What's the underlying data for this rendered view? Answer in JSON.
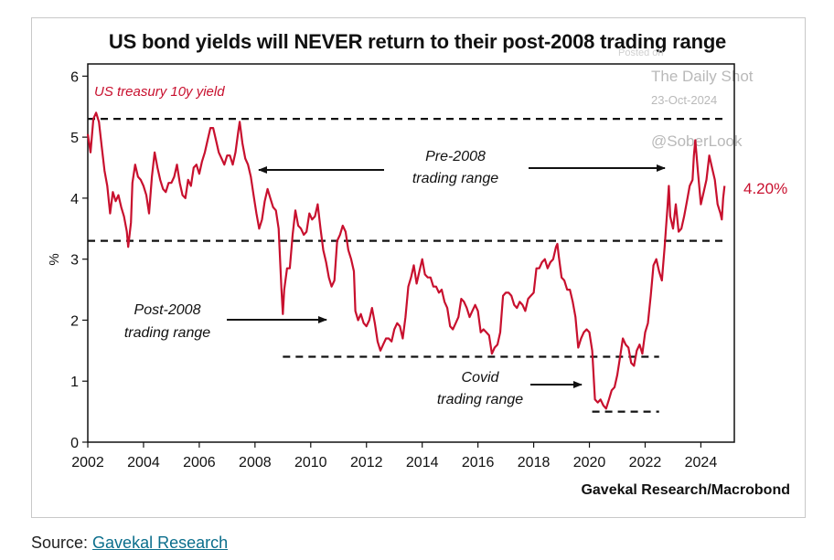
{
  "title": "US bond yields will NEVER return to their post-2008 trading range",
  "credit": "Gavekal Research/Macrobond",
  "source": {
    "prefix": "Source: ",
    "link": "Gavekal Research"
  },
  "watermark": {
    "posted": "Posted on",
    "name": "The Daily Shot",
    "date": "23-Oct-2024",
    "handle": "@SoberLook"
  },
  "colors": {
    "series": "#c8102e",
    "text": "#111111",
    "link": "#0b6e8c"
  },
  "chart_data": {
    "type": "line",
    "ylabel": "%",
    "xlim": [
      2002,
      2025.2
    ],
    "ylim": [
      0,
      6.2
    ],
    "yticks": [
      0,
      1,
      2,
      3,
      4,
      5,
      6
    ],
    "xticks": [
      2002,
      2004,
      2006,
      2008,
      2010,
      2012,
      2014,
      2016,
      2018,
      2020,
      2022,
      2024
    ],
    "grid": false,
    "series": [
      {
        "name": "US treasury 10y yield",
        "end_label": "4.20%",
        "points": [
          [
            2002.0,
            5.05
          ],
          [
            2002.1,
            4.75
          ],
          [
            2002.2,
            5.3
          ],
          [
            2002.3,
            5.4
          ],
          [
            2002.4,
            5.25
          ],
          [
            2002.5,
            4.85
          ],
          [
            2002.6,
            4.45
          ],
          [
            2002.7,
            4.2
          ],
          [
            2002.8,
            3.75
          ],
          [
            2002.9,
            4.1
          ],
          [
            2003.0,
            3.95
          ],
          [
            2003.1,
            4.05
          ],
          [
            2003.2,
            3.85
          ],
          [
            2003.3,
            3.7
          ],
          [
            2003.4,
            3.45
          ],
          [
            2003.45,
            3.2
          ],
          [
            2003.55,
            3.6
          ],
          [
            2003.6,
            4.25
          ],
          [
            2003.7,
            4.55
          ],
          [
            2003.8,
            4.35
          ],
          [
            2003.9,
            4.3
          ],
          [
            2004.0,
            4.2
          ],
          [
            2004.1,
            4.05
          ],
          [
            2004.2,
            3.75
          ],
          [
            2004.3,
            4.35
          ],
          [
            2004.4,
            4.75
          ],
          [
            2004.5,
            4.5
          ],
          [
            2004.6,
            4.3
          ],
          [
            2004.7,
            4.15
          ],
          [
            2004.8,
            4.1
          ],
          [
            2004.9,
            4.25
          ],
          [
            2005.0,
            4.25
          ],
          [
            2005.1,
            4.35
          ],
          [
            2005.2,
            4.55
          ],
          [
            2005.3,
            4.25
          ],
          [
            2005.4,
            4.05
          ],
          [
            2005.5,
            4.0
          ],
          [
            2005.6,
            4.3
          ],
          [
            2005.7,
            4.2
          ],
          [
            2005.8,
            4.5
          ],
          [
            2005.9,
            4.55
          ],
          [
            2006.0,
            4.4
          ],
          [
            2006.1,
            4.6
          ],
          [
            2006.2,
            4.75
          ],
          [
            2006.3,
            4.95
          ],
          [
            2006.4,
            5.15
          ],
          [
            2006.5,
            5.15
          ],
          [
            2006.6,
            4.95
          ],
          [
            2006.7,
            4.75
          ],
          [
            2006.8,
            4.65
          ],
          [
            2006.9,
            4.55
          ],
          [
            2007.0,
            4.7
          ],
          [
            2007.1,
            4.7
          ],
          [
            2007.2,
            4.55
          ],
          [
            2007.3,
            4.75
          ],
          [
            2007.4,
            5.1
          ],
          [
            2007.45,
            5.25
          ],
          [
            2007.55,
            4.9
          ],
          [
            2007.65,
            4.65
          ],
          [
            2007.75,
            4.55
          ],
          [
            2007.85,
            4.35
          ],
          [
            2007.95,
            4.05
          ],
          [
            2008.05,
            3.75
          ],
          [
            2008.15,
            3.5
          ],
          [
            2008.25,
            3.65
          ],
          [
            2008.35,
            3.95
          ],
          [
            2008.45,
            4.15
          ],
          [
            2008.55,
            4.0
          ],
          [
            2008.65,
            3.85
          ],
          [
            2008.75,
            3.8
          ],
          [
            2008.85,
            3.5
          ],
          [
            2008.95,
            2.5
          ],
          [
            2009.0,
            2.1
          ],
          [
            2009.05,
            2.5
          ],
          [
            2009.15,
            2.85
          ],
          [
            2009.25,
            2.85
          ],
          [
            2009.35,
            3.4
          ],
          [
            2009.45,
            3.8
          ],
          [
            2009.55,
            3.55
          ],
          [
            2009.65,
            3.5
          ],
          [
            2009.75,
            3.4
          ],
          [
            2009.85,
            3.45
          ],
          [
            2009.95,
            3.75
          ],
          [
            2010.05,
            3.65
          ],
          [
            2010.15,
            3.7
          ],
          [
            2010.25,
            3.9
          ],
          [
            2010.35,
            3.5
          ],
          [
            2010.45,
            3.15
          ],
          [
            2010.55,
            2.95
          ],
          [
            2010.65,
            2.7
          ],
          [
            2010.75,
            2.55
          ],
          [
            2010.85,
            2.65
          ],
          [
            2010.95,
            3.3
          ],
          [
            2011.05,
            3.4
          ],
          [
            2011.15,
            3.55
          ],
          [
            2011.25,
            3.45
          ],
          [
            2011.35,
            3.15
          ],
          [
            2011.45,
            3.0
          ],
          [
            2011.55,
            2.8
          ],
          [
            2011.6,
            2.15
          ],
          [
            2011.7,
            2.0
          ],
          [
            2011.8,
            2.1
          ],
          [
            2011.9,
            1.95
          ],
          [
            2012.0,
            1.9
          ],
          [
            2012.1,
            2.0
          ],
          [
            2012.2,
            2.2
          ],
          [
            2012.3,
            1.95
          ],
          [
            2012.4,
            1.65
          ],
          [
            2012.5,
            1.5
          ],
          [
            2012.6,
            1.6
          ],
          [
            2012.7,
            1.7
          ],
          [
            2012.8,
            1.7
          ],
          [
            2012.9,
            1.65
          ],
          [
            2013.0,
            1.85
          ],
          [
            2013.1,
            1.95
          ],
          [
            2013.2,
            1.9
          ],
          [
            2013.3,
            1.7
          ],
          [
            2013.4,
            2.05
          ],
          [
            2013.5,
            2.55
          ],
          [
            2013.6,
            2.7
          ],
          [
            2013.7,
            2.9
          ],
          [
            2013.8,
            2.6
          ],
          [
            2013.9,
            2.8
          ],
          [
            2014.0,
            3.0
          ],
          [
            2014.1,
            2.75
          ],
          [
            2014.2,
            2.7
          ],
          [
            2014.3,
            2.7
          ],
          [
            2014.4,
            2.55
          ],
          [
            2014.5,
            2.55
          ],
          [
            2014.6,
            2.45
          ],
          [
            2014.7,
            2.5
          ],
          [
            2014.8,
            2.3
          ],
          [
            2014.9,
            2.2
          ],
          [
            2015.0,
            1.9
          ],
          [
            2015.1,
            1.85
          ],
          [
            2015.2,
            1.95
          ],
          [
            2015.3,
            2.05
          ],
          [
            2015.4,
            2.35
          ],
          [
            2015.5,
            2.3
          ],
          [
            2015.6,
            2.2
          ],
          [
            2015.7,
            2.05
          ],
          [
            2015.8,
            2.15
          ],
          [
            2015.9,
            2.25
          ],
          [
            2016.0,
            2.15
          ],
          [
            2016.1,
            1.8
          ],
          [
            2016.2,
            1.85
          ],
          [
            2016.3,
            1.8
          ],
          [
            2016.4,
            1.75
          ],
          [
            2016.5,
            1.45
          ],
          [
            2016.6,
            1.55
          ],
          [
            2016.7,
            1.6
          ],
          [
            2016.8,
            1.8
          ],
          [
            2016.9,
            2.4
          ],
          [
            2017.0,
            2.45
          ],
          [
            2017.1,
            2.45
          ],
          [
            2017.2,
            2.4
          ],
          [
            2017.3,
            2.25
          ],
          [
            2017.4,
            2.2
          ],
          [
            2017.5,
            2.3
          ],
          [
            2017.6,
            2.25
          ],
          [
            2017.7,
            2.15
          ],
          [
            2017.8,
            2.35
          ],
          [
            2017.9,
            2.4
          ],
          [
            2018.0,
            2.45
          ],
          [
            2018.1,
            2.85
          ],
          [
            2018.2,
            2.85
          ],
          [
            2018.3,
            2.95
          ],
          [
            2018.4,
            3.0
          ],
          [
            2018.5,
            2.85
          ],
          [
            2018.6,
            2.95
          ],
          [
            2018.7,
            3.0
          ],
          [
            2018.8,
            3.2
          ],
          [
            2018.85,
            3.25
          ],
          [
            2018.9,
            3.05
          ],
          [
            2019.0,
            2.7
          ],
          [
            2019.1,
            2.65
          ],
          [
            2019.2,
            2.5
          ],
          [
            2019.3,
            2.5
          ],
          [
            2019.4,
            2.3
          ],
          [
            2019.5,
            2.05
          ],
          [
            2019.6,
            1.55
          ],
          [
            2019.7,
            1.7
          ],
          [
            2019.8,
            1.8
          ],
          [
            2019.9,
            1.85
          ],
          [
            2020.0,
            1.8
          ],
          [
            2020.1,
            1.5
          ],
          [
            2020.2,
            0.7
          ],
          [
            2020.3,
            0.65
          ],
          [
            2020.4,
            0.7
          ],
          [
            2020.5,
            0.6
          ],
          [
            2020.6,
            0.55
          ],
          [
            2020.7,
            0.7
          ],
          [
            2020.8,
            0.85
          ],
          [
            2020.9,
            0.9
          ],
          [
            2021.0,
            1.1
          ],
          [
            2021.1,
            1.4
          ],
          [
            2021.2,
            1.7
          ],
          [
            2021.3,
            1.6
          ],
          [
            2021.4,
            1.55
          ],
          [
            2021.5,
            1.3
          ],
          [
            2021.6,
            1.25
          ],
          [
            2021.7,
            1.5
          ],
          [
            2021.8,
            1.6
          ],
          [
            2021.9,
            1.45
          ],
          [
            2022.0,
            1.8
          ],
          [
            2022.1,
            1.95
          ],
          [
            2022.2,
            2.4
          ],
          [
            2022.3,
            2.9
          ],
          [
            2022.4,
            3.0
          ],
          [
            2022.5,
            2.8
          ],
          [
            2022.6,
            2.65
          ],
          [
            2022.7,
            3.2
          ],
          [
            2022.8,
            3.85
          ],
          [
            2022.85,
            4.2
          ],
          [
            2022.9,
            3.7
          ],
          [
            2023.0,
            3.5
          ],
          [
            2023.1,
            3.9
          ],
          [
            2023.2,
            3.45
          ],
          [
            2023.3,
            3.5
          ],
          [
            2023.4,
            3.7
          ],
          [
            2023.5,
            3.95
          ],
          [
            2023.6,
            4.2
          ],
          [
            2023.7,
            4.3
          ],
          [
            2023.75,
            4.7
          ],
          [
            2023.8,
            4.95
          ],
          [
            2023.9,
            4.4
          ],
          [
            2024.0,
            3.9
          ],
          [
            2024.1,
            4.1
          ],
          [
            2024.2,
            4.3
          ],
          [
            2024.3,
            4.7
          ],
          [
            2024.4,
            4.5
          ],
          [
            2024.5,
            4.3
          ],
          [
            2024.6,
            3.9
          ],
          [
            2024.7,
            3.75
          ],
          [
            2024.75,
            3.65
          ],
          [
            2024.8,
            4.0
          ],
          [
            2024.85,
            4.2
          ]
        ]
      }
    ],
    "reference_lines": [
      {
        "y": 5.3,
        "x": [
          2002.0,
          2024.8
        ]
      },
      {
        "y": 3.3,
        "x": [
          2002.0,
          2024.8
        ]
      },
      {
        "y": 1.4,
        "x": [
          2009.0,
          2022.5
        ]
      },
      {
        "y": 0.5,
        "x": [
          2020.1,
          2022.5
        ]
      }
    ],
    "annotations": [
      {
        "name": "pre-2008",
        "lines": [
          "Pre-2008",
          "trading range"
        ]
      },
      {
        "name": "post-2008",
        "lines": [
          "Post-2008",
          "trading range"
        ]
      },
      {
        "name": "covid",
        "lines": [
          "Covid",
          "trading range"
        ]
      }
    ]
  }
}
